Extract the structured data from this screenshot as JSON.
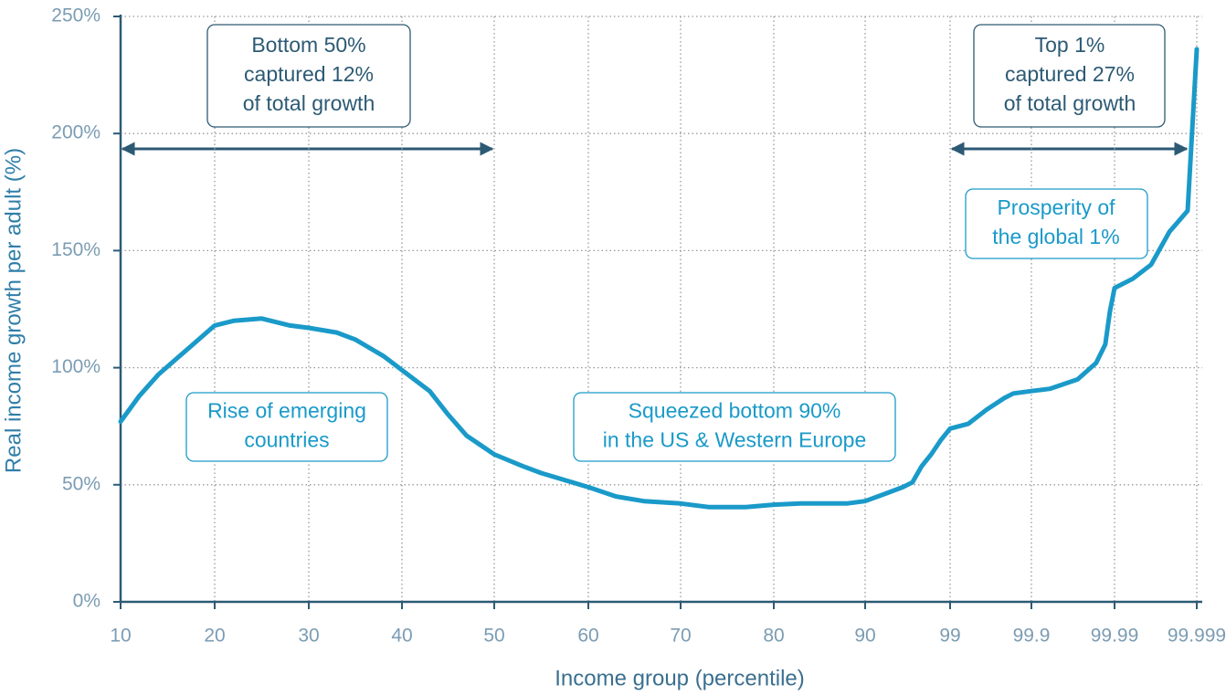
{
  "chart_data": {
    "type": "line",
    "xlabel": "Income group (percentile)",
    "ylabel": "Real income growth per adult (%)",
    "x": [
      10,
      12,
      14,
      16,
      18,
      20,
      22,
      25,
      28,
      30,
      33,
      35,
      38,
      40,
      43,
      45,
      47,
      50,
      53,
      55,
      60,
      63,
      66,
      70,
      73,
      77,
      80,
      83,
      88,
      90,
      92,
      94,
      95,
      96,
      97,
      98,
      99,
      99.2,
      99.4,
      99.6,
      99.7,
      99.9,
      99.92,
      99.95,
      99.97,
      99.98,
      99.985,
      99.99,
      99.992,
      99.994,
      99.996,
      99.998,
      99.999
    ],
    "values": [
      77,
      88,
      97,
      104,
      111,
      118,
      120,
      121,
      118,
      117,
      115,
      112,
      105,
      99,
      90,
      80,
      71,
      63,
      58,
      55,
      49,
      45,
      43,
      42,
      40.5,
      40.5,
      41.5,
      42,
      42,
      43,
      46,
      49,
      51,
      58,
      63,
      69,
      74,
      76,
      82,
      87,
      89,
      90,
      91,
      95,
      102,
      110,
      124,
      134,
      138,
      144,
      158,
      167,
      236
    ],
    "color": "#1a9ac9",
    "xticks": [
      10,
      20,
      30,
      40,
      50,
      60,
      70,
      80,
      90,
      99,
      99.9,
      99.99,
      99.999
    ],
    "ylim": [
      0,
      250
    ],
    "yticks": [
      {
        "value": 0,
        "label": "0%"
      },
      {
        "value": 50,
        "label": "50%"
      },
      {
        "value": 100,
        "label": "100%"
      },
      {
        "value": 150,
        "label": "150%"
      },
      {
        "value": 200,
        "label": "200%"
      },
      {
        "value": 250,
        "label": "250%"
      }
    ],
    "grid": true,
    "annotations": [
      {
        "lines": [
          "Bottom 50%",
          "captured 12%",
          "of total growth"
        ],
        "color": "#2c5a74"
      },
      {
        "lines": [
          "Top 1%",
          "captured 27%",
          "of total growth"
        ],
        "color": "#2c5a74"
      },
      {
        "lines": [
          "Prosperity of",
          "the global 1%"
        ],
        "color": "#1a9ac9"
      },
      {
        "lines": [
          "Rise of emerging",
          "countries"
        ],
        "color": "#1a9ac9"
      },
      {
        "lines": [
          "Squeezed bottom 90%",
          "in the US & Western Europe"
        ],
        "color": "#1a9ac9"
      }
    ]
  }
}
